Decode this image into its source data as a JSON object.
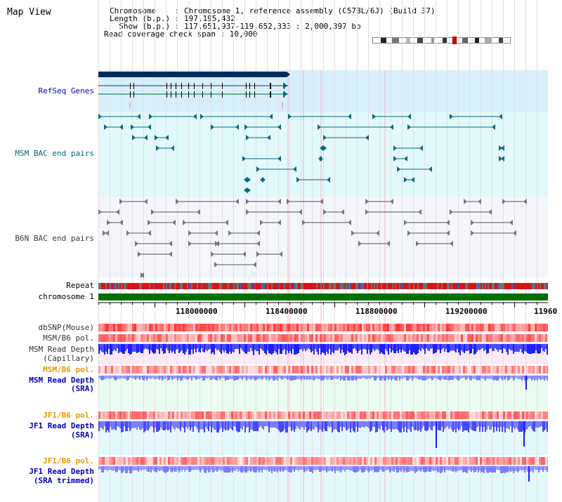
{
  "title": "Map View",
  "info": {
    "chromosome_line": "Chromosome    : Chromosome 1, reference assembly (C57BL/6J) (Build 37)",
    "length_line": "Length (b.p.) : 197,195,432",
    "show_line": "  Show (b.p.) : 117,651,937-119,652,333 : 2,000,397 bp",
    "span_line": "Read coverage check span : 10,000"
  },
  "tracks": {
    "refseq": {
      "label": "RefSeq Genes",
      "color": "#0000b0"
    },
    "msm_bac": {
      "label": "MSM BAC end pairs",
      "color": "#006a7a"
    },
    "b6n_bac": {
      "label": "B6N BAC end pairs",
      "color": "#3a3a3a"
    },
    "repeat": {
      "label": "Repeat",
      "color": "#000000"
    },
    "chromosome": {
      "label": "chromosome 1",
      "color": "#000000"
    },
    "dbsnp": {
      "label": "dbSNP(Mouse)",
      "color": "#333333"
    },
    "msm_b6_pol_1": {
      "label": "MSM/B6 pol.",
      "color": "#333333"
    },
    "msm_depth_cap": {
      "label_1": "MSM Read Depth",
      "label_2": "(Capillary)",
      "color": "#333333"
    },
    "msm_b6_pol_2": {
      "label": "MSM/B6 pol.",
      "color": "#e89a00"
    },
    "msm_depth_sra": {
      "label_1": "MSM Read Depth",
      "label_2": "(SRA)",
      "color": "#0000c0"
    },
    "jf1_b6_pol_1": {
      "label": "JF1/B6 pol.",
      "color": "#e89a00"
    },
    "jf1_depth_sra": {
      "label_1": "JF1 Read Depth",
      "label_2": "(SRA)",
      "color": "#0000c0"
    },
    "jf1_b6_pol_2": {
      "label": "JF1/B6 pol.",
      "color": "#e89a00"
    },
    "jf1_depth_trim": {
      "label_1": "JF1 Read Depth",
      "label_2": "(SRA trimmed)",
      "color": "#0000c0"
    }
  },
  "axis": {
    "ticks": [
      "118000000",
      "118400000",
      "118800000",
      "119200000",
      "11960"
    ]
  },
  "colors": {
    "refseq_bg": "#d8effa",
    "msm_bg": "#e2f8fa",
    "b6n_bg": "#f4f6fb",
    "cap_bg": "#fbeaf6",
    "sra_bg": "#eafbf0",
    "trim_bg": "#e4f8fb",
    "chromosome_bar": "#007000",
    "refseq_dark": "#002a5e",
    "teal": "#0a6a80",
    "gray": "#555555",
    "depth_blue": "#2020ff",
    "depth_light": "#7c7cff"
  }
}
